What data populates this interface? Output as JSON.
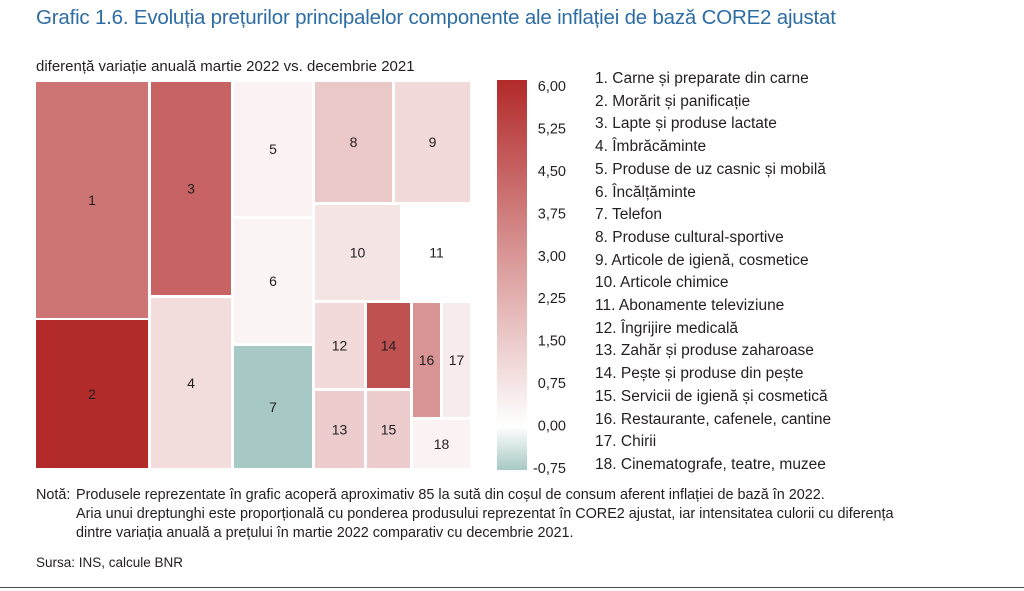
{
  "title": "Grafic 1.6. Evoluția prețurilor principalelor componente ale inflației de bază CORE2 ajustat",
  "chart_data": {
    "type": "treemap",
    "subtitle": "diferență variație anuală martie 2022 vs. decembrie 2021",
    "colorscale": {
      "ticks": [
        "6,00",
        "5,25",
        "4,50",
        "3,75",
        "3,00",
        "2,25",
        "1,50",
        "0,75",
        "0,00",
        "-0,75"
      ],
      "min": -0.75,
      "max": 6.0,
      "colors": {
        "low": "#a7c9c5",
        "zero": "#ffffff",
        "high": "#b22a2a"
      }
    },
    "items": [
      {
        "id": "1",
        "name": "Carne și preparate din carne",
        "value": 3.9
      },
      {
        "id": "2",
        "name": "Morărit și panificație",
        "value": 6.0
      },
      {
        "id": "3",
        "name": "Lapte și produse lactate",
        "value": 4.4
      },
      {
        "id": "4",
        "name": "Îmbrăcăminte",
        "value": 1.0
      },
      {
        "id": "5",
        "name": "Produse de uz casnic și mobilă",
        "value": 0.35
      },
      {
        "id": "6",
        "name": "Încălțăminte",
        "value": 0.3
      },
      {
        "id": "7",
        "name": "Telefon",
        "value": -0.75
      },
      {
        "id": "8",
        "name": "Produse cultural-sportive",
        "value": 1.55
      },
      {
        "id": "9",
        "name": "Articole de igienă, cosmetice",
        "value": 1.05
      },
      {
        "id": "10",
        "name": "Articole chimice",
        "value": 0.75
      },
      {
        "id": "11",
        "name": "Abonamente televiziune",
        "value": 0.0
      },
      {
        "id": "12",
        "name": "Îngrijire medicală",
        "value": 1.05
      },
      {
        "id": "13",
        "name": "Zahăr și produse zaharoase",
        "value": 1.45
      },
      {
        "id": "14",
        "name": "Pește și produse din pește",
        "value": 4.9
      },
      {
        "id": "15",
        "name": "Servicii de igienă și cosmetică",
        "value": 1.45
      },
      {
        "id": "16",
        "name": "Restaurante, cafenele, cantine",
        "value": 3.0
      },
      {
        "id": "17",
        "name": "Chirii",
        "value": 0.55
      },
      {
        "id": "18",
        "name": "Cinematografe, teatre, muzee",
        "value": 0.35
      }
    ]
  },
  "note": {
    "label": "Notă:",
    "line1": "Produsele reprezentate în grafic acoperă aproximativ 85 la sută din coșul de consum aferent inflației de bază în 2022.",
    "line2": "Aria unui dreptunghi este proporțională cu ponderea produsului reprezentat în CORE2 ajustat, iar intensitatea culorii cu diferența",
    "line3": "dintre variația anuală a prețului în martie 2022 comparativ cu decembrie 2021."
  },
  "source": "Sursa: INS, calcule BNR"
}
